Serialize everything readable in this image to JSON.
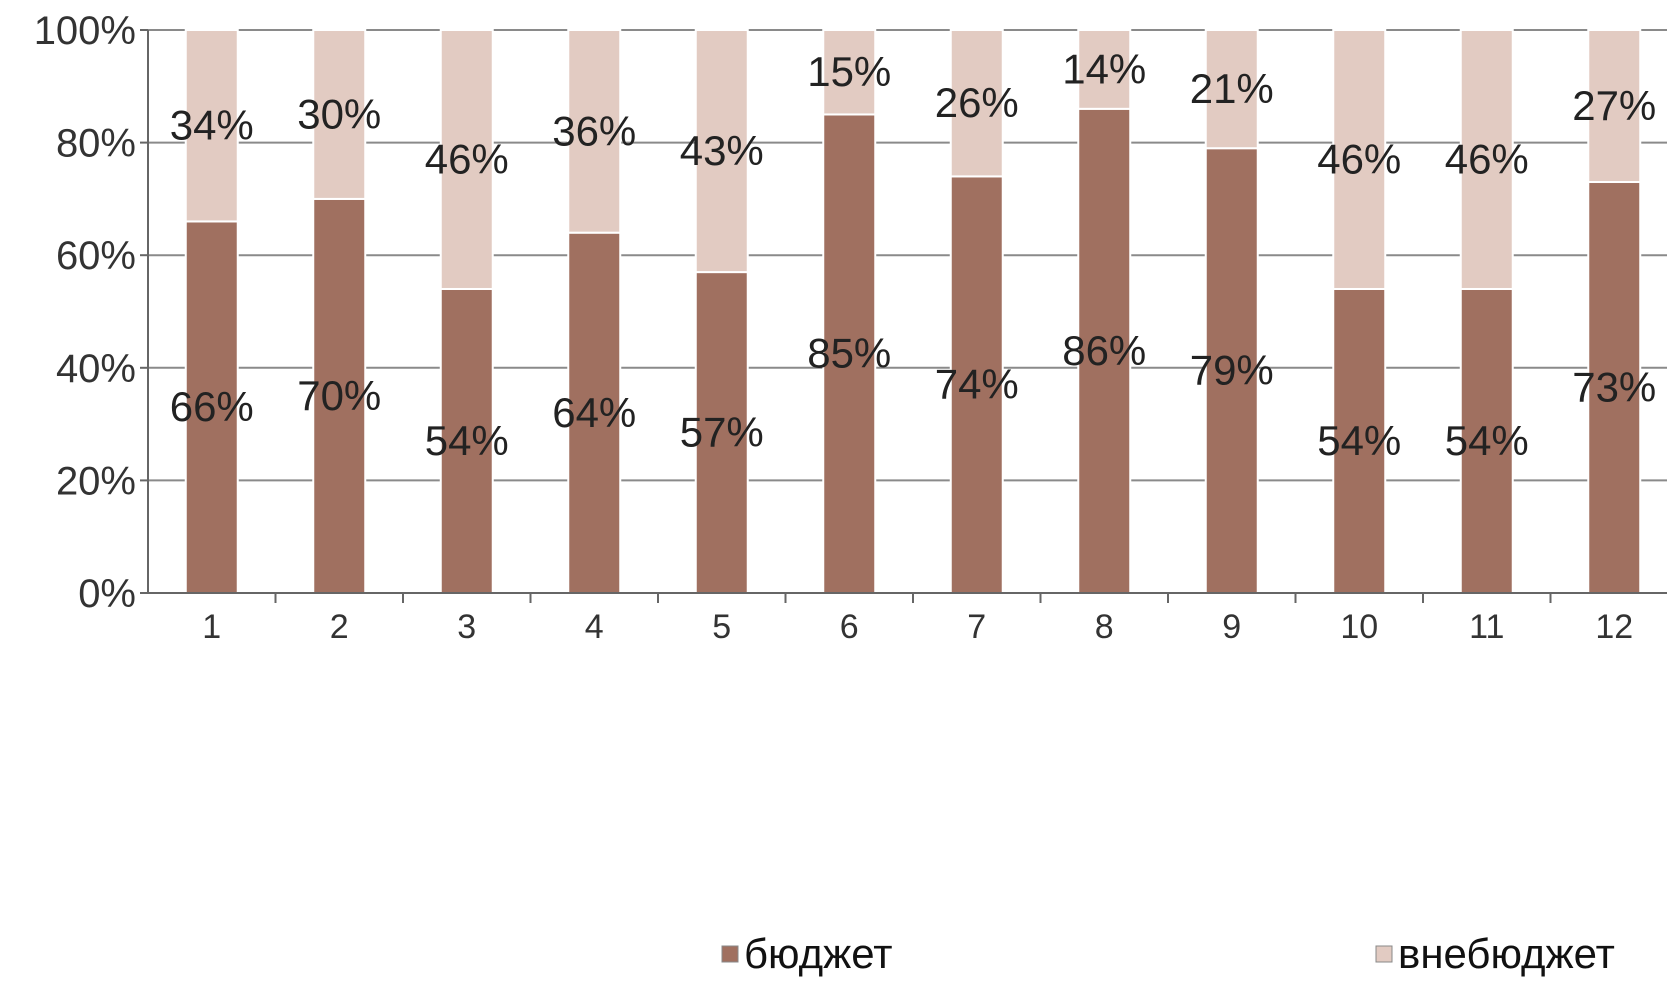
{
  "chart_data": {
    "type": "bar",
    "stacked": true,
    "categories": [
      "1",
      "2",
      "3",
      "4",
      "5",
      "6",
      "7",
      "8",
      "9",
      "10",
      "11",
      "12"
    ],
    "series": [
      {
        "name": "бюджет",
        "color": "#a07060",
        "values": [
          66,
          70,
          54,
          64,
          57,
          85,
          74,
          86,
          79,
          54,
          54,
          73
        ],
        "labels": [
          "66%",
          "70%",
          "54%",
          "64%",
          "57%",
          "85%",
          "74%",
          "86%",
          "79%",
          "54%",
          "54%",
          "73%"
        ]
      },
      {
        "name": "внебюджет",
        "color": "#e2cbc2",
        "values": [
          34,
          30,
          46,
          36,
          43,
          15,
          26,
          14,
          21,
          46,
          46,
          27
        ],
        "labels": [
          "34%",
          "30%",
          "46%",
          "36%",
          "43%",
          "15%",
          "26%",
          "14%",
          "21%",
          "46%",
          "46%",
          "27%"
        ]
      }
    ],
    "y_ticks": [
      "0%",
      "20%",
      "40%",
      "60%",
      "80%",
      "100%"
    ],
    "ylim": [
      0,
      100
    ],
    "grid": true,
    "legend": "bottom",
    "title": "",
    "xlabel": "",
    "ylabel": ""
  }
}
